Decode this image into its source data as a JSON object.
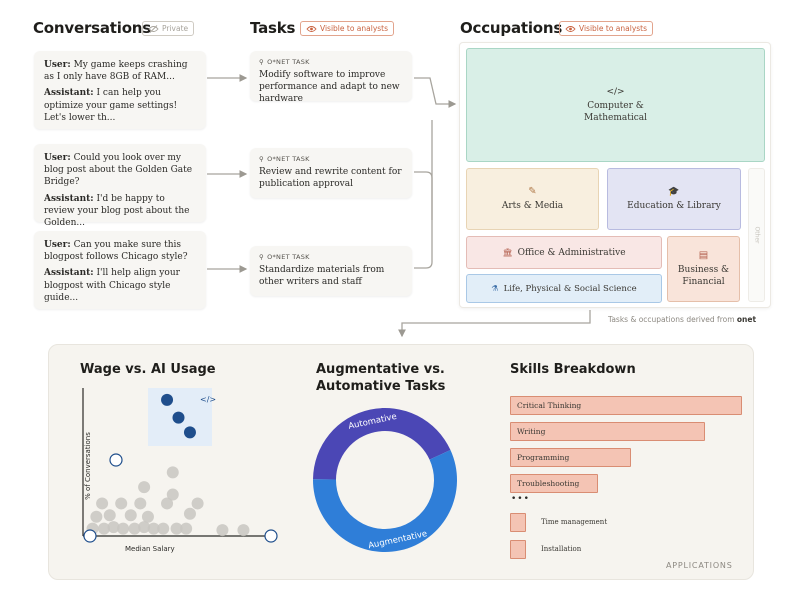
{
  "headers": {
    "conversations": "Conversations",
    "private_badge": "Private",
    "tasks": "Tasks",
    "tasks_badge": "Visible to analysts",
    "occupations": "Occupations",
    "occupations_badge": "Visible to analysts"
  },
  "conversations": [
    {
      "user_label": "User:",
      "user_text": "My game keeps crashing as I only have 8GB of RAM...",
      "assistant_label": "Assistant:",
      "assistant_text": "I can help you optimize your game settings! Let's lower th..."
    },
    {
      "user_label": "User:",
      "user_text": "Could you look over my blog post about the Golden Gate Bridge?",
      "assistant_label": "Assistant:",
      "assistant_text": "I'd be happy to review your blog post about the Golden..."
    },
    {
      "user_label": "User:",
      "user_text": "Can you make sure this blogpost follows Chicago style?",
      "assistant_label": "Assistant:",
      "assistant_text": "I'll help align your blogpost with Chicago style guide..."
    }
  ],
  "tasks": [
    {
      "label": "O*NET TASK",
      "text": "Modify software to improve performance and adapt to new hardware"
    },
    {
      "label": "O*NET TASK",
      "text": "Review and rewrite content for publication approval"
    },
    {
      "label": "O*NET TASK",
      "text": "Standardize materials from other writers and staff"
    }
  ],
  "occupations": {
    "computer": {
      "icon": "</>",
      "label": "Computer & Mathematical",
      "color": "#d9efe7"
    },
    "arts": {
      "icon": "✎",
      "label": "Arts & Media",
      "color": "#f8efdf"
    },
    "education": {
      "icon": "🎓",
      "label": "Education & Library",
      "color": "#e3e4f3"
    },
    "other": {
      "label": "Other"
    },
    "office": {
      "icon": "🏛",
      "label": "Office & Administrative",
      "color": "#f9e7e5"
    },
    "business": {
      "icon": "▤",
      "label": "Business & Financial",
      "color": "#f9e4da"
    },
    "science": {
      "icon": "⚗",
      "label": "Life, Physical & Social Science",
      "color": "#e2eef8"
    }
  },
  "derived_note": {
    "text": "Tasks & occupations derived from",
    "brand": "onet"
  },
  "applications": {
    "label": "APPLICATIONS",
    "wage_chart": {
      "title": "Wage vs. AI Usage",
      "xlabel": "Median Salary",
      "ylabel": "% of Conversations"
    },
    "donut_chart": {
      "title_line1": "Augmentative vs.",
      "title_line2": "Automative Tasks"
    },
    "skills_chart": {
      "title": "Skills Breakdown"
    }
  },
  "chart_data": [
    {
      "type": "pie",
      "labels": [
        "Automative",
        "Augmentative"
      ],
      "values": [
        43,
        57
      ],
      "colors": [
        "#4b47b5",
        "#2f7ed8"
      ]
    },
    {
      "type": "bar",
      "categories": [
        "Critical Thinking",
        "Writing",
        "Programming",
        "Troubleshooting",
        "Time management",
        "Installation"
      ],
      "values": [
        100,
        84,
        52,
        40,
        7,
        7
      ]
    },
    {
      "type": "scatter",
      "highlighted": [
        {
          "x": 0.44,
          "y": 0.92
        },
        {
          "x": 0.5,
          "y": 0.8
        },
        {
          "x": 0.56,
          "y": 0.7
        }
      ],
      "points": [
        {
          "x": 0.47,
          "y": 0.43
        },
        {
          "x": 0.32,
          "y": 0.33
        },
        {
          "x": 0.47,
          "y": 0.28
        },
        {
          "x": 0.1,
          "y": 0.22
        },
        {
          "x": 0.2,
          "y": 0.22
        },
        {
          "x": 0.3,
          "y": 0.22
        },
        {
          "x": 0.44,
          "y": 0.22
        },
        {
          "x": 0.6,
          "y": 0.22
        },
        {
          "x": 0.07,
          "y": 0.13
        },
        {
          "x": 0.14,
          "y": 0.14
        },
        {
          "x": 0.25,
          "y": 0.14
        },
        {
          "x": 0.34,
          "y": 0.13
        },
        {
          "x": 0.56,
          "y": 0.15
        },
        {
          "x": 0.05,
          "y": 0.05
        },
        {
          "x": 0.11,
          "y": 0.05
        },
        {
          "x": 0.16,
          "y": 0.06
        },
        {
          "x": 0.21,
          "y": 0.05
        },
        {
          "x": 0.27,
          "y": 0.05
        },
        {
          "x": 0.32,
          "y": 0.06
        },
        {
          "x": 0.37,
          "y": 0.05
        },
        {
          "x": 0.42,
          "y": 0.05
        },
        {
          "x": 0.49,
          "y": 0.05
        },
        {
          "x": 0.54,
          "y": 0.05
        },
        {
          "x": 0.73,
          "y": 0.04
        },
        {
          "x": 0.84,
          "y": 0.04
        }
      ]
    }
  ]
}
